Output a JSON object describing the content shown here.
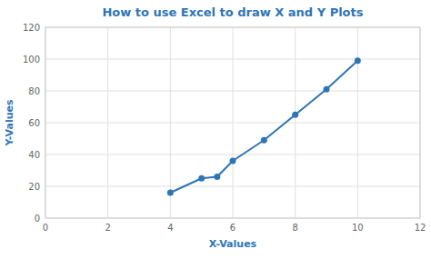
{
  "chart_data": {
    "type": "line",
    "title": "How to use Excel to draw X and Y Plots",
    "xlabel": "X-Values",
    "ylabel": "Y-Values",
    "x": [
      4,
      5,
      5.5,
      6,
      7,
      8,
      9,
      10
    ],
    "values": [
      16,
      25,
      26,
      36,
      49,
      65,
      81,
      99
    ],
    "color": "#2E75B6",
    "marker": "circle",
    "xlim": [
      0,
      12
    ],
    "ylim": [
      0,
      120
    ],
    "xticks": [
      0,
      2,
      4,
      6,
      8,
      10,
      12
    ],
    "yticks": [
      0,
      20,
      40,
      60,
      80,
      100,
      120
    ],
    "grid": true
  }
}
